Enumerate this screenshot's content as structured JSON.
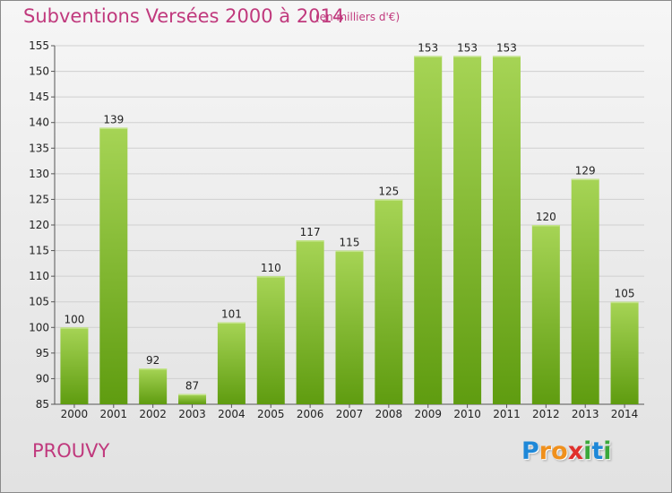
{
  "title": "Subventions Versées 2000 à 2014",
  "subtitle": "(en milliers d'€)",
  "commune": "PROUVY",
  "logo": {
    "letters": [
      "P",
      "r",
      "o",
      "x",
      "i",
      "t",
      "i"
    ],
    "colors": [
      "#1e88d8",
      "#f0901c",
      "#f0901c",
      "#e0302c",
      "#3aa83a",
      "#1e88d8",
      "#3aa83a"
    ]
  },
  "colors": {
    "title": "#c0397d",
    "bar_top": "#a6d455",
    "bar_bottom": "#5f9c10",
    "grid": "#cfcfcf"
  },
  "chart_data": {
    "type": "bar",
    "categories": [
      "2000",
      "2001",
      "2002",
      "2003",
      "2004",
      "2005",
      "2006",
      "2007",
      "2008",
      "2009",
      "2010",
      "2011",
      "2012",
      "2013",
      "2014"
    ],
    "values": [
      100,
      139,
      92,
      87,
      101,
      110,
      117,
      115,
      125,
      153,
      153,
      153,
      120,
      129,
      105
    ],
    "ylim": [
      85,
      155
    ],
    "yticks": [
      85,
      90,
      95,
      100,
      105,
      110,
      115,
      120,
      125,
      130,
      135,
      140,
      145,
      150,
      155
    ],
    "grid": true
  }
}
